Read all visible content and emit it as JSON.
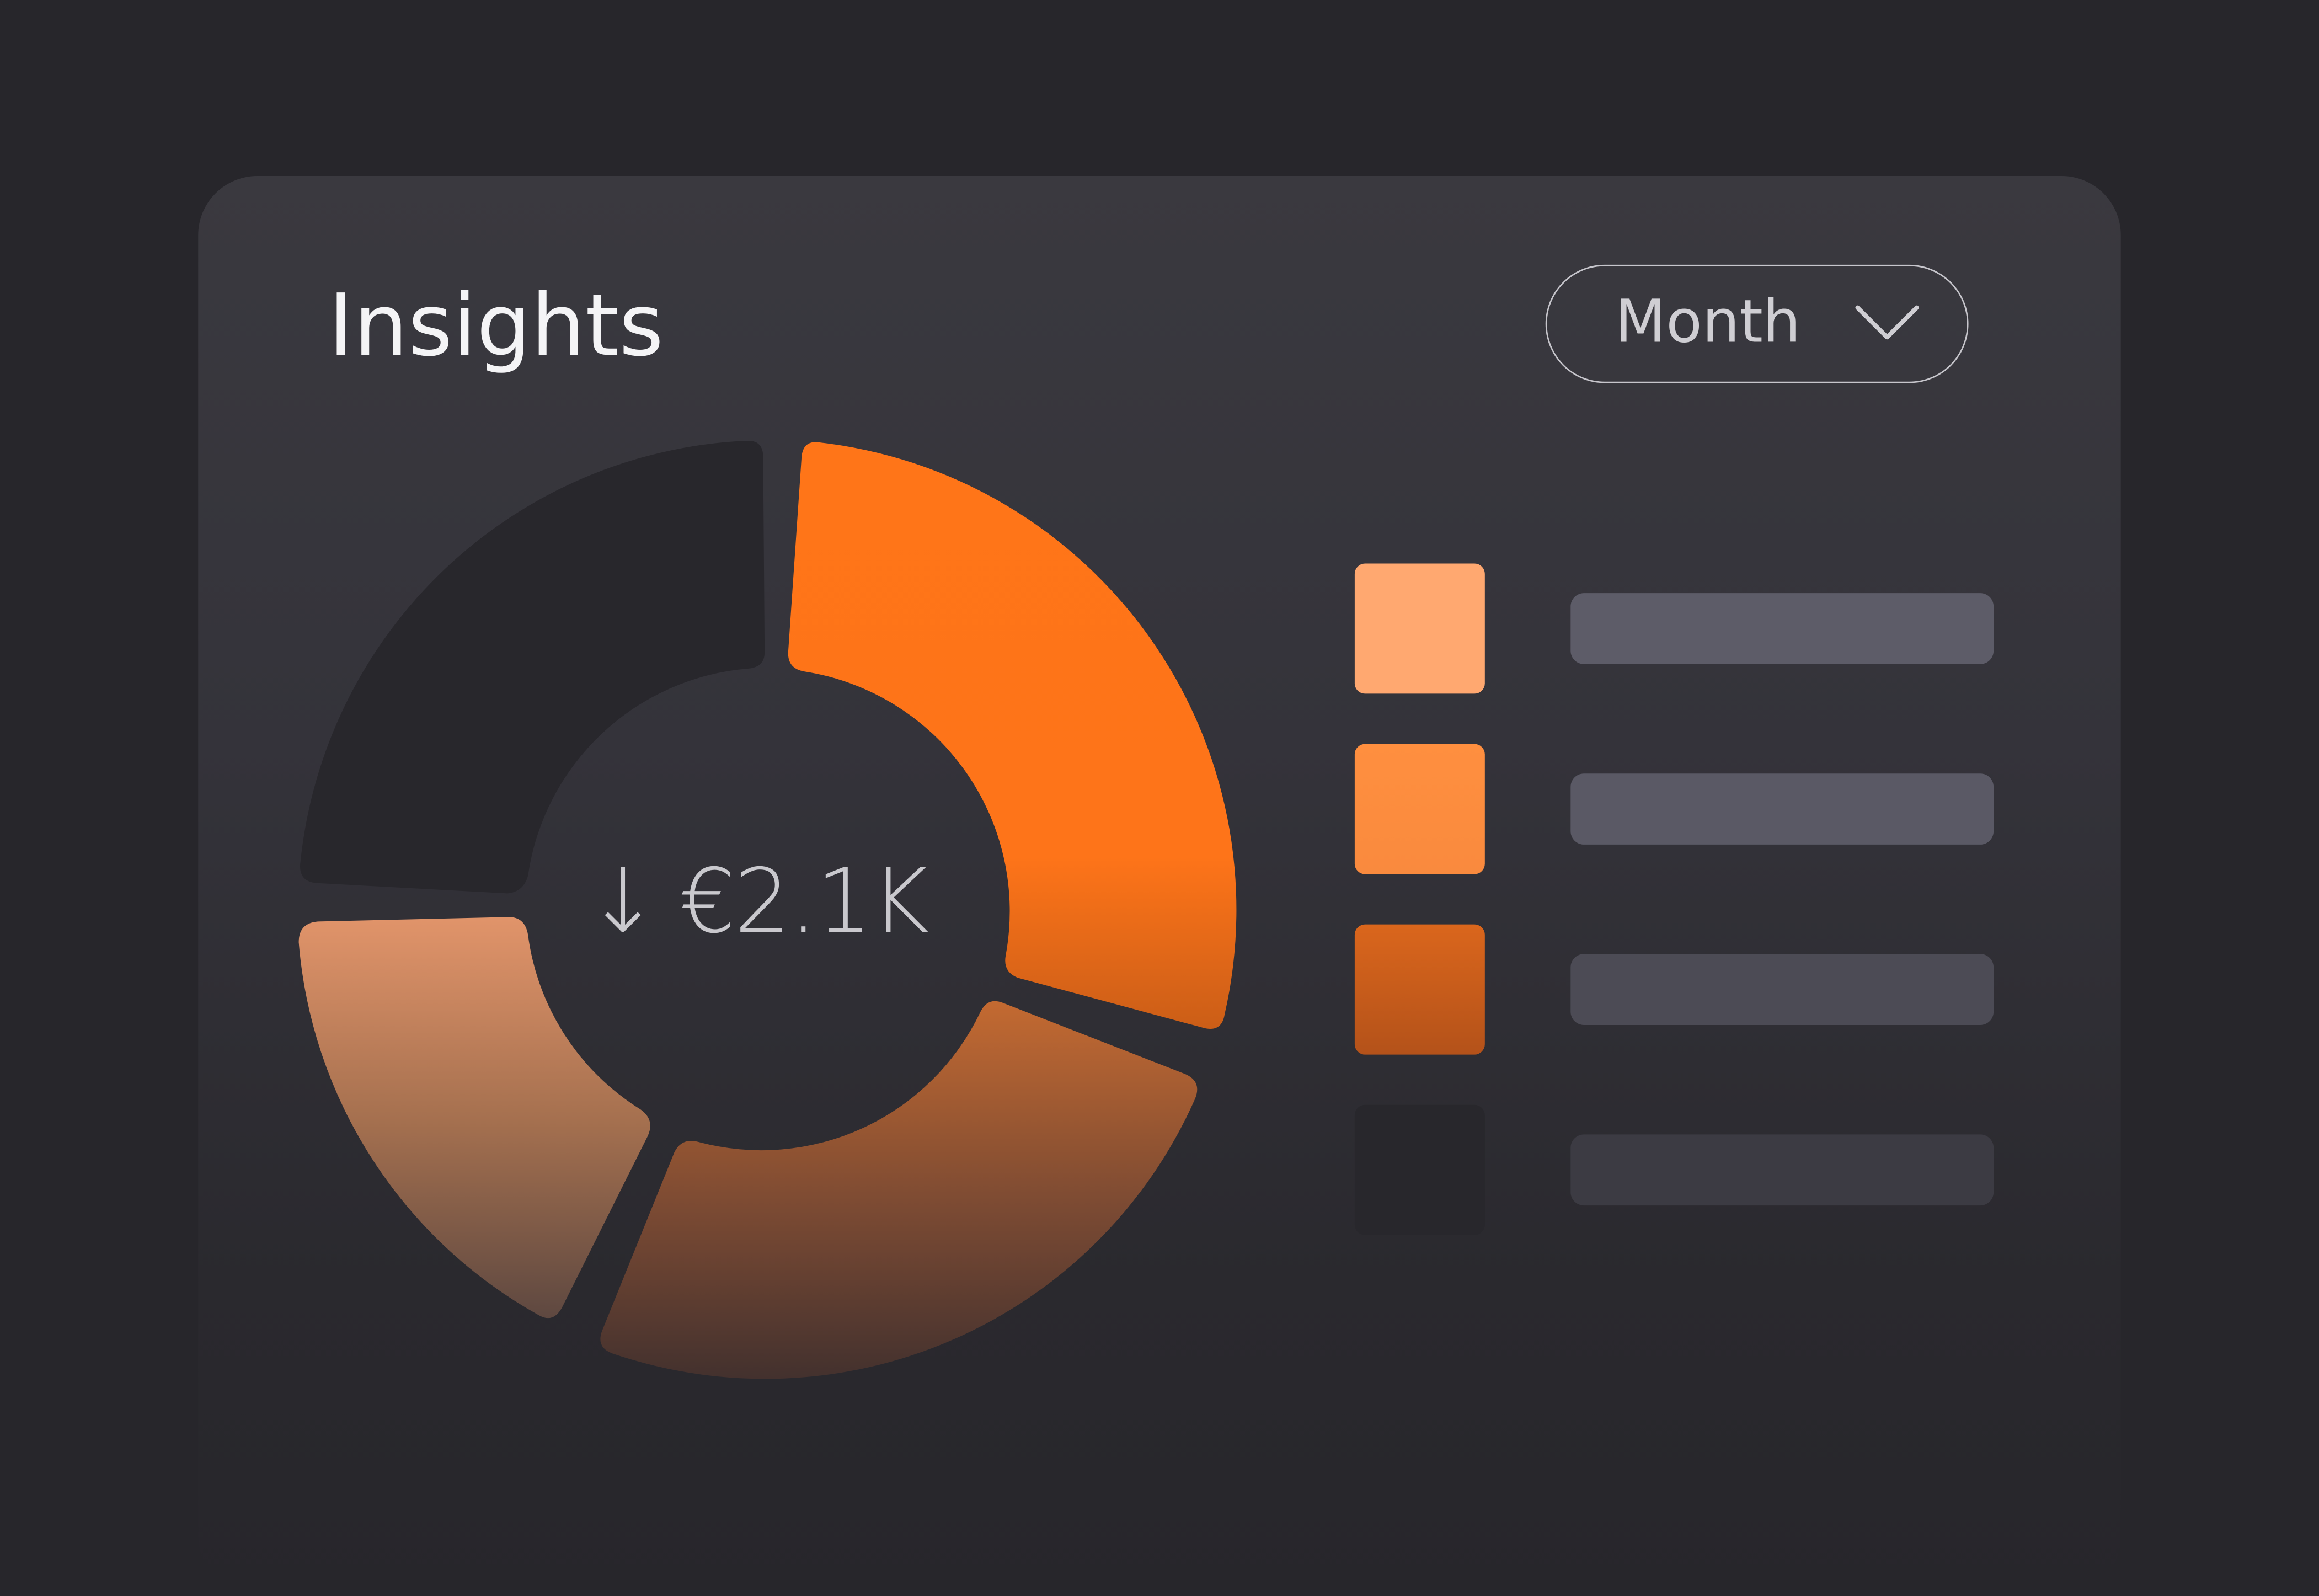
{
  "header": {
    "title": "Insights"
  },
  "period_select": {
    "selected": "Month",
    "icon": "chevron-down-icon"
  },
  "summary": {
    "trend_icon": "arrow-down-icon",
    "arrow": "↓",
    "value": "€2.1K"
  },
  "colors": {
    "background": "#27262b",
    "card": "#3a393f",
    "accent": "#ff7518",
    "segment_light": "#ffa870",
    "segment_mid": "#ff8c3f",
    "segment_deep": "#d4611a",
    "segment_dark": "#28272c",
    "placeholder_bar": "#5b5a66"
  },
  "legend": [
    {
      "swatch_color": "#ffa870"
    },
    {
      "swatch_color": "#ff8c3f"
    },
    {
      "swatch_color": "#d4611a"
    },
    {
      "swatch_color": "#28272c"
    }
  ]
}
